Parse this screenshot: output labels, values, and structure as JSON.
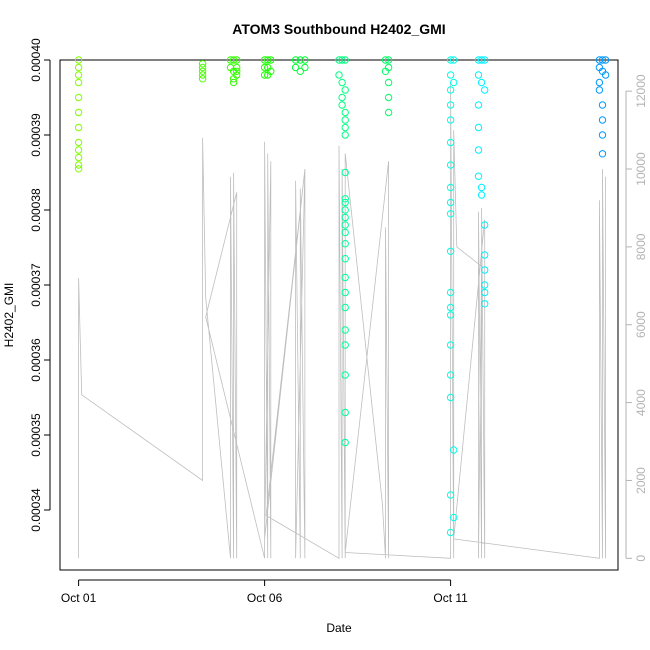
{
  "chart_data": {
    "type": "scatter",
    "title": "ATOM3 Southbound H2402_GMI",
    "xlabel": "Date",
    "ylabel": "H2402_GMI",
    "x_ticks": [
      "Oct 01",
      "Oct 06",
      "Oct 11"
    ],
    "xlim": [
      "2016-09-30T12:00",
      "2016-10-15T12:00"
    ],
    "ylim": [
      0.000332,
      0.0004
    ],
    "y_ticks": [
      0.00034,
      0.00035,
      0.00036,
      0.00037,
      0.00038,
      0.00039,
      0.0004
    ],
    "y_tick_labels": [
      "0.00034",
      "0.00035",
      "0.00036",
      "0.00037",
      "0.00038",
      "0.00039",
      "0.00040"
    ],
    "y2_ticks": [
      0,
      2000,
      4000,
      6000,
      8000,
      10000,
      12000
    ],
    "y2lim": [
      -300,
      12800
    ],
    "legend": "none",
    "grid": false,
    "series": [
      {
        "color": "#7FFF00",
        "x": [
          "2016-10-01T00:00",
          "2016-10-01T00:00",
          "2016-10-01T00:00",
          "2016-10-01T00:00",
          "2016-10-01T00:00",
          "2016-10-01T00:00",
          "2016-10-01T00:00",
          "2016-10-01T00:00",
          "2016-10-01T00:00",
          "2016-10-01T00:00",
          "2016-10-01T00:00",
          "2016-10-01T00:00"
        ],
        "y": [
          0.0004,
          0.000399,
          0.000398,
          0.000397,
          0.000395,
          0.000393,
          0.000391,
          0.000389,
          0.000388,
          0.000387,
          0.000386,
          0.0003855
        ]
      },
      {
        "color": "#4CFF00",
        "x": [
          "2016-10-04T08:00",
          "2016-10-04T08:00",
          "2016-10-04T08:00",
          "2016-10-04T08:00",
          "2016-10-04T08:00"
        ],
        "y": [
          0.0003995,
          0.000399,
          0.0003985,
          0.000398,
          0.0003975
        ]
      },
      {
        "color": "#33FF00",
        "x": [
          "2016-10-05T02:00",
          "2016-10-05T02:00",
          "2016-10-05T04:00",
          "2016-10-05T04:00",
          "2016-10-05T06:00",
          "2016-10-05T06:00",
          "2016-10-05T06:00",
          "2016-10-05T06:00",
          "2016-10-05T04:00",
          "2016-10-05T04:00"
        ],
        "y": [
          0.0004,
          0.000399,
          0.0004,
          0.0003985,
          0.0004,
          0.000399,
          0.0003985,
          0.000398,
          0.0003975,
          0.000397
        ]
      },
      {
        "color": "#1AFF00",
        "x": [
          "2016-10-06T00:00",
          "2016-10-06T00:00",
          "2016-10-06T02:00",
          "2016-10-06T02:00",
          "2016-10-06T04:00",
          "2016-10-06T04:00",
          "2016-10-06T00:00",
          "2016-10-06T02:00"
        ],
        "y": [
          0.0004,
          0.000399,
          0.0004,
          0.000399,
          0.0004,
          0.0003985,
          0.000398,
          0.000398
        ]
      },
      {
        "color": "#00FF33",
        "x": [
          "2016-10-06T20:00",
          "2016-10-06T20:00",
          "2016-10-06T23:00",
          "2016-10-06T23:00",
          "2016-10-07T02:00",
          "2016-10-07T02:00"
        ],
        "y": [
          0.0004,
          0.000399,
          0.0004,
          0.0003985,
          0.0004,
          0.000399
        ]
      },
      {
        "color": "#00FF80",
        "x": [
          "2016-10-08T00:00",
          "2016-10-08T00:00",
          "2016-10-08T02:00",
          "2016-10-08T02:00",
          "2016-10-08T04:00",
          "2016-10-08T04:00",
          "2016-10-08T02:00",
          "2016-10-08T02:00",
          "2016-10-08T04:00",
          "2016-10-08T04:00",
          "2016-10-08T04:00",
          "2016-10-08T04:00"
        ],
        "y": [
          0.0004,
          0.000398,
          0.0004,
          0.000397,
          0.0004,
          0.000396,
          0.000395,
          0.000394,
          0.000393,
          0.000392,
          0.000391,
          0.00039
        ]
      },
      {
        "color": "#00FF99",
        "x": [
          "2016-10-08T04:00",
          "2016-10-08T04:00",
          "2016-10-08T04:00",
          "2016-10-08T04:00",
          "2016-10-08T04:00",
          "2016-10-08T04:00",
          "2016-10-08T04:00",
          "2016-10-08T04:00",
          "2016-10-08T04:00",
          "2016-10-08T04:00",
          "2016-10-08T04:00",
          "2016-10-08T04:00",
          "2016-10-08T04:00",
          "2016-10-08T04:00",
          "2016-10-08T04:00",
          "2016-10-08T04:00",
          "2016-10-08T04:00"
        ],
        "y": [
          0.000385,
          0.0003815,
          0.000381,
          0.00038,
          0.000379,
          0.000378,
          0.000377,
          0.0003755,
          0.0003735,
          0.000371,
          0.000369,
          0.000367,
          0.000364,
          0.000362,
          0.000358,
          0.000353,
          0.000349
        ]
      },
      {
        "color": "#00FF66",
        "x": [
          "2016-10-09T06:00",
          "2016-10-09T06:00",
          "2016-10-09T08:00",
          "2016-10-09T08:00",
          "2016-10-09T08:00",
          "2016-10-09T08:00",
          "2016-10-09T08:00"
        ],
        "y": [
          0.0004,
          0.0003985,
          0.0004,
          0.000399,
          0.000397,
          0.000395,
          0.000393
        ]
      },
      {
        "color": "#00FFE6",
        "x": [
          "2016-10-11T00:00",
          "2016-10-11T00:00",
          "2016-10-11T02:00",
          "2016-10-11T02:00",
          "2016-10-11T00:00",
          "2016-10-11T00:00",
          "2016-10-11T00:00",
          "2016-10-11T00:00",
          "2016-10-11T00:00",
          "2016-10-11T00:00",
          "2016-10-11T00:00",
          "2016-10-11T00:00",
          "2016-10-11T00:00",
          "2016-10-11T00:00",
          "2016-10-11T00:00",
          "2016-10-11T00:00",
          "2016-10-11T00:00",
          "2016-10-11T00:00",
          "2016-10-11T00:00",
          "2016-10-11T02:00",
          "2016-10-11T00:00",
          "2016-10-11T02:00",
          "2016-10-11T00:00"
        ],
        "y": [
          0.0004,
          0.000398,
          0.0004,
          0.000397,
          0.000396,
          0.000394,
          0.000392,
          0.000389,
          0.000386,
          0.000383,
          0.000381,
          0.0003795,
          0.0003745,
          0.000369,
          0.000367,
          0.000366,
          0.000362,
          0.000358,
          0.000355,
          0.000348,
          0.000342,
          0.000339,
          0.000337
        ]
      },
      {
        "color": "#00F0FF",
        "x": [
          "2016-10-11T18:00",
          "2016-10-11T18:00",
          "2016-10-11T20:00",
          "2016-10-11T20:00",
          "2016-10-11T22:00",
          "2016-10-11T22:00",
          "2016-10-11T18:00",
          "2016-10-11T18:00",
          "2016-10-11T18:00",
          "2016-10-11T18:00",
          "2016-10-11T20:00",
          "2016-10-11T20:00",
          "2016-10-11T22:00",
          "2016-10-11T22:00",
          "2016-10-11T22:00",
          "2016-10-11T22:00",
          "2016-10-11T22:00",
          "2016-10-11T22:00"
        ],
        "y": [
          0.0004,
          0.000398,
          0.0004,
          0.000397,
          0.0004,
          0.000396,
          0.000394,
          0.000391,
          0.000388,
          0.0003845,
          0.000383,
          0.000382,
          0.000378,
          0.000374,
          0.000372,
          0.00037,
          0.000369,
          0.0003675
        ]
      },
      {
        "color": "#0099FF",
        "x": [
          "2016-10-15T00:00",
          "2016-10-15T00:00",
          "2016-10-15T02:00",
          "2016-10-15T02:00",
          "2016-10-15T04:00",
          "2016-10-15T04:00",
          "2016-10-15T00:00",
          "2016-10-15T00:00",
          "2016-10-15T02:00",
          "2016-10-15T02:00",
          "2016-10-15T02:00",
          "2016-10-15T02:00"
        ],
        "y": [
          0.0004,
          0.000399,
          0.0004,
          0.0003985,
          0.0004,
          0.000398,
          0.000397,
          0.000396,
          0.000394,
          0.000392,
          0.00039,
          0.0003875
        ]
      }
    ],
    "secondary_line": {
      "color": "#BEBEBE",
      "x": [
        "2016-10-01T00:00",
        "2016-10-01T00:00",
        "2016-10-01T02:00",
        "2016-10-04T08:00",
        "2016-10-04T08:00",
        "2016-10-04T10:00",
        "2016-10-05T02:00",
        "2016-10-05T02:00",
        "2016-10-05T04:00",
        "2016-10-05T04:00",
        "2016-10-05T06:00",
        "2016-10-05T06:00",
        "2016-10-04T10:00",
        "2016-10-06T00:00",
        "2016-10-06T00:00",
        "2016-10-06T02:00",
        "2016-10-06T02:00",
        "2016-10-06T04:00",
        "2016-10-06T04:00",
        "2016-10-06T00:00",
        "2016-10-07T02:00",
        "2016-10-06T20:00",
        "2016-10-06T20:00",
        "2016-10-06T23:00",
        "2016-10-06T23:00",
        "2016-10-07T02:00",
        "2016-10-07T02:00",
        "2016-10-06T01:00",
        "2016-10-08T00:00",
        "2016-10-08T00:00",
        "2016-10-08T02:00",
        "2016-10-08T02:00",
        "2016-10-08T04:00",
        "2016-10-08T04:00",
        "2016-10-09T04:00",
        "2016-10-09T06:00",
        "2016-10-09T06:00",
        "2016-10-09T08:00",
        "2016-10-09T08:00",
        "2016-10-08T04:00",
        "2016-10-11T00:00",
        "2016-10-11T00:00",
        "2016-10-11T02:00",
        "2016-10-11T02:00",
        "2016-10-11T04:00",
        "2016-10-11T20:00",
        "2016-10-11T18:00",
        "2016-10-11T18:00",
        "2016-10-11T20:00",
        "2016-10-11T20:00",
        "2016-10-11T22:00",
        "2016-10-11T22:00",
        "2016-10-11T02:00",
        "2016-10-15T00:00",
        "2016-10-15T00:00",
        "2016-10-15T02:00",
        "2016-10-15T02:00",
        "2016-10-15T04:00",
        "2016-10-15T04:00"
      ],
      "y": [
        0,
        7200,
        4200,
        2000,
        10800,
        6700,
        0,
        9800,
        0,
        9900,
        0,
        9400,
        6200,
        0,
        10700,
        0,
        10400,
        0,
        10200,
        500,
        10000,
        0,
        9700,
        0,
        9500,
        0,
        10000,
        1100,
        0,
        10600,
        0,
        10000,
        0,
        10400,
        1400,
        0,
        8500,
        0,
        10200,
        150,
        0,
        12200,
        0,
        11000,
        8000,
        7500,
        0,
        8900,
        0,
        9000,
        0,
        8700,
        500,
        0,
        9200,
        0,
        10000,
        0,
        9800
      ]
    }
  }
}
